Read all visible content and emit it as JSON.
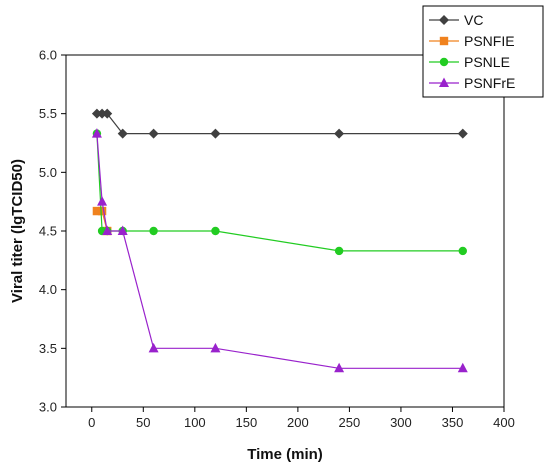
{
  "chart_data": {
    "type": "line",
    "title": "",
    "xlabel": "Time (min)",
    "ylabel": "Viral titer (lgTCID50)",
    "xlim": [
      -25,
      400
    ],
    "ylim": [
      3.0,
      6.0
    ],
    "xticks": [
      0,
      50,
      100,
      150,
      200,
      250,
      300,
      350,
      400
    ],
    "yticks": [
      3.0,
      3.5,
      4.0,
      4.5,
      5.0,
      5.5,
      6.0
    ],
    "xtick_labels": [
      "0",
      "50",
      "100",
      "150",
      "200",
      "250",
      "300",
      "350",
      "400"
    ],
    "ytick_labels": [
      "3.0",
      "3.5",
      "4.0",
      "4.5",
      "5.0",
      "5.5",
      "6.0"
    ],
    "grid": false,
    "legend_position": "top-right",
    "series": [
      {
        "name": "VC",
        "color": "#404040",
        "marker": "diamond",
        "x": [
          5,
          10,
          15,
          30,
          60,
          120,
          240,
          360
        ],
        "y": [
          5.5,
          5.5,
          5.5,
          5.33,
          5.33,
          5.33,
          5.33,
          5.33
        ]
      },
      {
        "name": "PSNFIE",
        "color": "#f0821e",
        "marker": "square",
        "x": [
          5,
          10,
          15
        ],
        "y": [
          4.67,
          4.67,
          4.5
        ]
      },
      {
        "name": "PSNLE",
        "color": "#22cc22",
        "marker": "circle",
        "x": [
          5,
          10,
          15,
          30,
          60,
          120,
          240,
          360
        ],
        "y": [
          5.33,
          4.5,
          4.5,
          4.5,
          4.5,
          4.5,
          4.33,
          4.33
        ]
      },
      {
        "name": "PSNFrE",
        "color": "#9922cc",
        "marker": "triangle",
        "x": [
          5,
          10,
          15,
          30,
          60,
          120,
          240,
          360
        ],
        "y": [
          5.33,
          4.75,
          4.5,
          4.5,
          3.5,
          3.5,
          3.33,
          3.33
        ]
      }
    ]
  }
}
